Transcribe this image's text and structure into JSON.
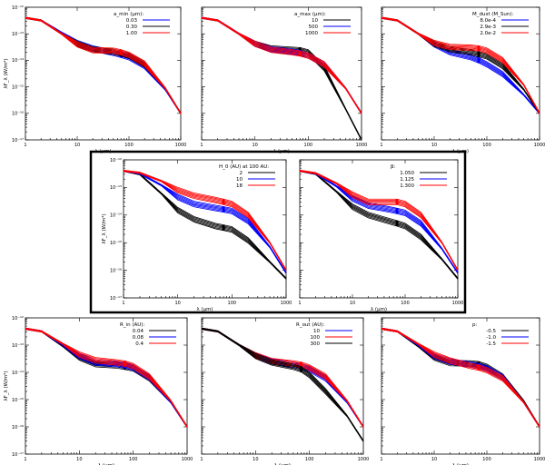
{
  "figure": {
    "chart_data": [
      {
        "type": "line",
        "panel_id": "p1",
        "xlabel": "λ (μm)",
        "ylabel": "λF_λ (W/m²)",
        "xscale": "log",
        "yscale": "log",
        "xlim": [
          1,
          1000
        ],
        "ylim": [
          1e-17,
          1e-12
        ],
        "xticks": [
          "1",
          "10",
          "100",
          "1000"
        ],
        "yticks": [
          "10⁻¹⁷",
          "10⁻¹⁶",
          "10⁻¹⁵",
          "10⁻¹⁴",
          "10⁻¹³",
          "10⁻¹²"
        ],
        "legend_title": "a_min (μm):",
        "legend_position": "top-right",
        "x": [
          1,
          2,
          5,
          10,
          20,
          50,
          70,
          100,
          200,
          500,
          1000
        ],
        "series": [
          {
            "name": "0.03",
            "color": "#0000ff",
            "values": [
              4e-13,
              3.2e-13,
              1.1e-13,
              4.5e-14,
              2.8e-14,
              1.9e-14,
              1.6e-14,
              1.3e-14,
              6e-15,
              8e-16,
              1e-16
            ]
          },
          {
            "name": "0.30",
            "color": "#000000",
            "values": [
              4e-13,
              3.2e-13,
              1e-13,
              4.2e-14,
              2.6e-14,
              2.1e-14,
              1.8e-14,
              1.5e-14,
              7e-15,
              9e-16,
              1e-16
            ]
          },
          {
            "name": "1.00",
            "color": "#ff0000",
            "values": [
              4e-13,
              3.2e-13,
              1e-13,
              4e-14,
              2.4e-14,
              2.3e-14,
              2e-14,
              1.6e-14,
              7.5e-15,
              9e-16,
              1e-16
            ]
          }
        ]
      },
      {
        "type": "line",
        "panel_id": "p2",
        "xlabel": "λ (μm)",
        "ylabel": "",
        "xscale": "log",
        "yscale": "log",
        "xlim": [
          1,
          1000
        ],
        "ylim": [
          1e-17,
          1e-12
        ],
        "xticks": [
          "1",
          "10",
          "100",
          "1000"
        ],
        "yticks": [],
        "legend_title": "a_max (μm):",
        "legend_position": "top-right",
        "x": [
          1,
          2,
          5,
          10,
          20,
          50,
          70,
          100,
          200,
          500,
          1000
        ],
        "series": [
          {
            "name": "10",
            "color": "#000000",
            "values": [
              4e-13,
              3.2e-13,
              1e-13,
              4.2e-14,
              2.8e-14,
              2.5e-14,
              2.4e-14,
              2e-14,
              5e-15,
              1.5e-16,
              1e-17
            ]
          },
          {
            "name": "500",
            "color": "#0000ff",
            "values": [
              4e-13,
              3.2e-13,
              1e-13,
              4.2e-14,
              2.6e-14,
              2.1e-14,
              1.9e-14,
              1.5e-14,
              7e-15,
              9e-16,
              1e-16
            ]
          },
          {
            "name": "1000",
            "color": "#ff0000",
            "values": [
              4e-13,
              3.2e-13,
              1e-13,
              4.2e-14,
              2.5e-14,
              2e-14,
              1.8e-14,
              1.5e-14,
              7e-15,
              9e-16,
              1e-16
            ]
          }
        ]
      },
      {
        "type": "line",
        "panel_id": "p3",
        "xlabel": "λ (μm)",
        "ylabel": "",
        "xscale": "log",
        "yscale": "log",
        "xlim": [
          1,
          1000
        ],
        "ylim": [
          1e-17,
          1e-12
        ],
        "xticks": [
          "1",
          "10",
          "100",
          "1000"
        ],
        "yticks": [],
        "legend_title": "M_dust (M_Sun):",
        "legend_position": "top-right",
        "x": [
          1,
          2,
          5,
          10,
          20,
          50,
          70,
          100,
          200,
          500,
          1000
        ],
        "series": [
          {
            "name": "8.0e-4",
            "color": "#0000ff",
            "values": [
              4e-13,
              3.2e-13,
              1e-13,
              4e-14,
              2e-14,
              1.3e-14,
              1e-14,
              7e-15,
              3e-15,
              5e-16,
              1e-16
            ]
          },
          {
            "name": "2.9e-3",
            "color": "#000000",
            "values": [
              4e-13,
              3.2e-13,
              1e-13,
              4.2e-14,
              2.6e-14,
              2e-14,
              1.7e-14,
              1.4e-14,
              6e-15,
              8e-16,
              1e-16
            ]
          },
          {
            "name": "2.0e-2",
            "color": "#ff0000",
            "values": [
              4e-13,
              3.2e-13,
              1e-13,
              4.5e-14,
              3.2e-14,
              3e-14,
              2.8e-14,
              2.3e-14,
              1e-14,
              1.2e-15,
              1e-16
            ]
          }
        ]
      },
      {
        "type": "line",
        "panel_id": "p4",
        "highlighted": true,
        "xlabel": "λ (μm)",
        "ylabel": "λF_λ (W/m²)",
        "xscale": "log",
        "yscale": "log",
        "xlim": [
          1,
          1000
        ],
        "ylim": [
          1e-17,
          1e-12
        ],
        "xticks": [
          "1",
          "10",
          "100",
          "1000"
        ],
        "yticks": [
          "10⁻¹⁷",
          "10⁻¹⁶",
          "10⁻¹⁵",
          "10⁻¹⁴",
          "10⁻¹³",
          "10⁻¹²"
        ],
        "legend_title": "H_0 (AU) at 100 AU:",
        "legend_position": "top-right",
        "x": [
          1,
          2,
          5,
          10,
          20,
          50,
          70,
          100,
          200,
          500,
          1000
        ],
        "series": [
          {
            "name": "2",
            "color": "#000000",
            "values": [
              4e-13,
              3e-13,
              6e-14,
              1.5e-14,
              7e-15,
              4e-15,
              3.5e-15,
              3e-15,
              1.2e-15,
              2e-16,
              5e-17
            ]
          },
          {
            "name": "10",
            "color": "#0000ff",
            "values": [
              4e-13,
              3.2e-13,
              1.2e-13,
              4.5e-14,
              2.5e-14,
              1.8e-14,
              1.6e-14,
              1.4e-14,
              6e-15,
              7e-16,
              8e-17
            ]
          },
          {
            "name": "18",
            "color": "#ff0000",
            "values": [
              4e-13,
              3.4e-13,
              1.7e-13,
              8e-14,
              5e-14,
              3.5e-14,
              3e-14,
              2.5e-14,
              1e-14,
              1e-15,
              1e-16
            ]
          }
        ]
      },
      {
        "type": "line",
        "panel_id": "p5",
        "highlighted": true,
        "xlabel": "λ (μm)",
        "ylabel": "",
        "xscale": "log",
        "yscale": "log",
        "xlim": [
          1,
          1000
        ],
        "ylim": [
          1e-17,
          1e-12
        ],
        "xticks": [
          "1",
          "10",
          "100",
          "1000"
        ],
        "yticks": [],
        "legend_title": "β:",
        "legend_position": "top-right",
        "x": [
          1,
          2,
          5,
          10,
          20,
          50,
          70,
          100,
          200,
          500,
          1000
        ],
        "series": [
          {
            "name": "1.050",
            "color": "#000000",
            "values": [
              4e-13,
              3.1e-13,
              7e-14,
              2e-14,
              1e-14,
              6e-15,
              5e-15,
              4e-15,
              1.6e-15,
              2.5e-16,
              5e-17
            ]
          },
          {
            "name": "1.125",
            "color": "#0000ff",
            "values": [
              4e-13,
              3.2e-13,
              1.1e-13,
              4e-14,
              2.2e-14,
              1.6e-14,
              1.4e-14,
              1.2e-14,
              5e-15,
              6e-16,
              8e-17
            ]
          },
          {
            "name": "1.300",
            "color": "#ff0000",
            "values": [
              4e-13,
              3.3e-13,
              1.4e-13,
              5.5e-14,
              3e-14,
              3e-14,
              3e-14,
              2.5e-14,
              1e-14,
              1e-15,
              1e-16
            ]
          }
        ]
      },
      {
        "type": "line",
        "panel_id": "p6",
        "xlabel": "λ (μm)",
        "ylabel": "λF_λ (W/m²)",
        "xscale": "log",
        "yscale": "log",
        "xlim": [
          1,
          1000
        ],
        "ylim": [
          1e-17,
          1e-12
        ],
        "xticks": [
          "1",
          "10",
          "100",
          "1000"
        ],
        "yticks": [
          "10⁻¹⁷",
          "10⁻¹⁶",
          "10⁻¹⁵",
          "10⁻¹⁴",
          "10⁻¹³",
          "10⁻¹²"
        ],
        "legend_title": "R_in (AU):",
        "legend_position": "top-right",
        "x": [
          1,
          2,
          5,
          10,
          20,
          50,
          70,
          100,
          200,
          500,
          1000
        ],
        "series": [
          {
            "name": "0.04",
            "color": "#000000",
            "values": [
              4e-13,
              3.2e-13,
              9e-14,
              3.5e-14,
              2e-14,
              1.8e-14,
              1.6e-14,
              1.4e-14,
              6e-15,
              8e-16,
              1e-16
            ]
          },
          {
            "name": "0.08",
            "color": "#0000ff",
            "values": [
              4e-13,
              3.2e-13,
              1e-13,
              4e-14,
              2.3e-14,
              2e-14,
              1.8e-14,
              1.5e-14,
              6.5e-15,
              8e-16,
              1e-16
            ]
          },
          {
            "name": "0.4",
            "color": "#ff0000",
            "values": [
              4e-13,
              3.2e-13,
              1.1e-13,
              4.5e-14,
              2.8e-14,
              2.3e-14,
              2.1e-14,
              1.7e-14,
              7e-15,
              9e-16,
              1e-16
            ]
          }
        ]
      },
      {
        "type": "line",
        "panel_id": "p7",
        "xlabel": "λ (μm)",
        "ylabel": "",
        "xscale": "log",
        "yscale": "log",
        "xlim": [
          1,
          1000
        ],
        "ylim": [
          1e-17,
          1e-12
        ],
        "xticks": [
          "1",
          "10",
          "100",
          "1000"
        ],
        "yticks": [],
        "legend_title": "R_out (AU):",
        "legend_position": "top-right",
        "x": [
          1,
          2,
          5,
          10,
          20,
          50,
          70,
          100,
          200,
          500,
          1000
        ],
        "series": [
          {
            "name": "10",
            "color": "#0000ff",
            "values": [
              4e-13,
              3.2e-13,
              1e-13,
              4.2e-14,
              2.5e-14,
              1.9e-14,
              1.6e-14,
              1.3e-14,
              6e-15,
              8e-16,
              1e-16
            ]
          },
          {
            "name": "100",
            "color": "#ff0000",
            "values": [
              4e-13,
              3.2e-13,
              1e-13,
              4.2e-14,
              2.6e-14,
              2.1e-14,
              1.9e-14,
              1.5e-14,
              7e-15,
              9e-16,
              1e-16
            ]
          },
          {
            "name": "300",
            "color": "#000000",
            "values": [
              4e-13,
              3.2e-13,
              1e-13,
              4e-14,
              2.3e-14,
              1.6e-14,
              1.3e-14,
              8e-15,
              2e-15,
              2.5e-16,
              3e-17
            ]
          }
        ]
      },
      {
        "type": "line",
        "panel_id": "p8",
        "xlabel": "λ (μm)",
        "ylabel": "",
        "xscale": "log",
        "yscale": "log",
        "xlim": [
          1,
          1000
        ],
        "ylim": [
          1e-17,
          1e-12
        ],
        "xticks": [
          "1",
          "10",
          "100",
          "1000"
        ],
        "yticks": [],
        "legend_title": "p:",
        "legend_position": "top-right",
        "x": [
          1,
          2,
          5,
          10,
          20,
          50,
          70,
          100,
          200,
          500,
          1000
        ],
        "series": [
          {
            "name": "-0.5",
            "color": "#000000",
            "values": [
              4e-13,
              3.2e-13,
              9e-14,
              3.5e-14,
              2.2e-14,
              2.1e-14,
              2e-14,
              1.6e-14,
              7e-15,
              9e-16,
              1e-16
            ]
          },
          {
            "name": "-1.0",
            "color": "#0000ff",
            "values": [
              4e-13,
              3.2e-13,
              1e-13,
              4e-14,
              2.5e-14,
              1.9e-14,
              1.7e-14,
              1.4e-14,
              6.5e-15,
              8e-16,
              1e-16
            ]
          },
          {
            "name": "-1.5",
            "color": "#ff0000",
            "values": [
              4e-13,
              3.2e-13,
              1.1e-13,
              4.5e-14,
              2.7e-14,
              1.7e-14,
              1.5e-14,
              1.2e-14,
              6e-15,
              8e-16,
              1e-16
            ]
          }
        ]
      }
    ]
  }
}
